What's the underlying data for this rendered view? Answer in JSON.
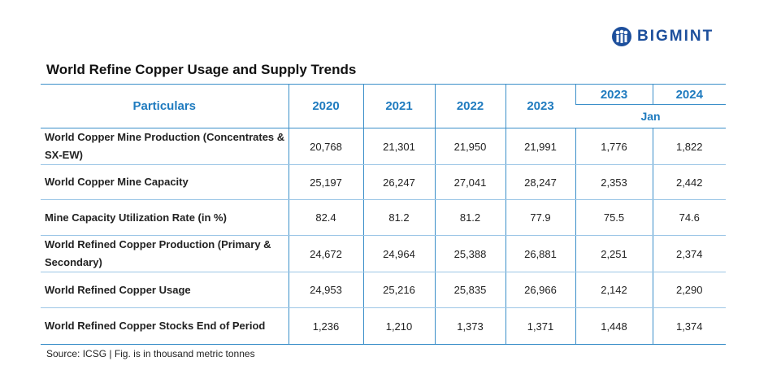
{
  "header": {
    "logo": "BIGMINT",
    "title": "World Refine Copper Usage and Supply Trends"
  },
  "table": {
    "columns": [
      "Particulars",
      "2020",
      "2021",
      "2022",
      "2023",
      "2023",
      "2024"
    ],
    "subheader": "Jan",
    "rows": [
      [
        "World Copper Mine Production (Concentrates & SX-EW)",
        "20,768",
        "21,301",
        "21,950",
        "21,991",
        "1,776",
        "1,822"
      ],
      [
        "World Copper Mine Capacity",
        "25,197",
        "26,247",
        "27,041",
        "28,247",
        "2,353",
        "2,442"
      ],
      [
        "Mine Capacity Utilization Rate (in %)",
        "82.4",
        "81.2",
        "81.2",
        "77.9",
        "75.5",
        "74.6"
      ],
      [
        "World Refined Copper Production (Primary & Secondary)",
        "24,672",
        "24,964",
        "25,388",
        "26,881",
        "2,251",
        "2,374"
      ],
      [
        "World Refined Copper Usage",
        "24,953",
        "25,216",
        "25,835",
        "26,966",
        "2,142",
        "2,290"
      ],
      [
        "World Refined Copper Stocks End of Period",
        "1,236",
        "1,210",
        "1,373",
        "1,371",
        "1,448",
        "1,374"
      ]
    ]
  },
  "footer": {
    "source": "Source: ICSG | Fig. is in thousand metric tonnes"
  }
}
